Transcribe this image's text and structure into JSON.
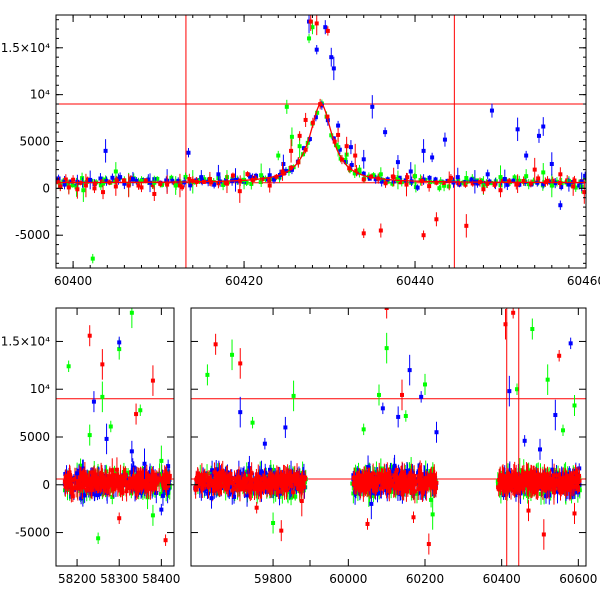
{
  "chart_data": [
    {
      "type": "scatter",
      "panel": "top",
      "xlim": [
        60398,
        60460
      ],
      "ylim": [
        -8500,
        18500
      ],
      "grid": false,
      "legend": "none",
      "x_ticks": [
        {
          "value": 60400,
          "label": "60400"
        },
        {
          "value": 60420,
          "label": "60420"
        },
        {
          "value": 60440,
          "label": "60440"
        },
        {
          "value": 60460,
          "label": "60460"
        }
      ],
      "y_ticks": [
        {
          "value": 15000,
          "label": "1.5×10⁴"
        },
        {
          "value": 10000,
          "label": "10⁴"
        },
        {
          "value": 5000,
          "label": "5000"
        },
        {
          "value": 0,
          "label": "0"
        },
        {
          "value": -5000,
          "label": "-5000"
        }
      ],
      "reference_lines": {
        "horizontal": [
          9000,
          600
        ],
        "vertical": [
          60413.2,
          60444.6
        ]
      },
      "model_curve": {
        "color": "#ff0000",
        "peak_x": 60429,
        "peak_y": 9000,
        "baseline": 600,
        "width": 1.6
      },
      "series": [
        {
          "color": "#00ff00",
          "points": [
            [
              60398.5,
              300
            ],
            [
              60399.5,
              200
            ],
            [
              60400.4,
              100
            ],
            [
              60401.2,
              -200
            ],
            [
              60402.3,
              -7500
            ],
            [
              60403.5,
              500
            ],
            [
              60405,
              1800
            ],
            [
              60406.5,
              400
            ],
            [
              60408,
              800
            ],
            [
              60409.5,
              600
            ],
            [
              60412,
              300
            ],
            [
              60414,
              700
            ],
            [
              60416,
              1000
            ],
            [
              60418,
              1200
            ],
            [
              60420,
              900
            ],
            [
              60422,
              1400
            ],
            [
              60424,
              3500
            ],
            [
              60425,
              8700
            ],
            [
              60425.6,
              5500
            ],
            [
              60426.5,
              4500
            ],
            [
              60427.6,
              16000
            ],
            [
              60428,
              17200
            ],
            [
              60431,
              4400
            ],
            [
              60432,
              3600
            ],
            [
              60433.5,
              2000
            ],
            [
              60436,
              1500
            ],
            [
              60438,
              900
            ],
            [
              60440,
              1300
            ],
            [
              60443,
              700
            ],
            [
              60446,
              1100
            ],
            [
              60448,
              300
            ],
            [
              60450,
              1200
            ],
            [
              60452,
              800
            ],
            [
              60453,
              1300
            ],
            [
              60455,
              1700
            ],
            [
              60456,
              300
            ],
            [
              60458,
              800
            ],
            [
              60459.5,
              200
            ]
          ]
        },
        {
          "color": "#0000ff",
          "points": [
            [
              60399,
              400
            ],
            [
              60400.5,
              700
            ],
            [
              60402,
              900
            ],
            [
              60403.8,
              4000
            ],
            [
              60405.5,
              1200
            ],
            [
              60407,
              1000
            ],
            [
              60409,
              600
            ],
            [
              60411,
              800
            ],
            [
              60413.5,
              3800
            ],
            [
              60415,
              1200
            ],
            [
              60417,
              1500
            ],
            [
              60419,
              900
            ],
            [
              60421,
              1100
            ],
            [
              60423,
              1400
            ],
            [
              60424.6,
              2600
            ],
            [
              60427.6,
              17800
            ],
            [
              60428.5,
              14800
            ],
            [
              60429.5,
              17200
            ],
            [
              60430.2,
              14000
            ],
            [
              60430.5,
              12800
            ],
            [
              60431,
              6700
            ],
            [
              60432.5,
              4400
            ],
            [
              60434,
              3100
            ],
            [
              60435,
              8700
            ],
            [
              60436.5,
              6000
            ],
            [
              60438,
              2800
            ],
            [
              60439.5,
              1800
            ],
            [
              60441,
              4000
            ],
            [
              60442,
              3300
            ],
            [
              60443.5,
              5200
            ],
            [
              60445,
              1200
            ],
            [
              60447,
              700
            ],
            [
              60448.5,
              1500
            ],
            [
              60449,
              8300
            ],
            [
              60450.5,
              1000
            ],
            [
              60452,
              6300
            ],
            [
              60453,
              3500
            ],
            [
              60454.5,
              5600
            ],
            [
              60455,
              6600
            ],
            [
              60456,
              2600
            ],
            [
              60457,
              -1800
            ],
            [
              60458,
              400
            ],
            [
              60459.5,
              700
            ]
          ]
        },
        {
          "color": "#ff0000",
          "points": [
            [
              60398.5,
              200
            ],
            [
              60399.5,
              100
            ],
            [
              60400.5,
              -100
            ],
            [
              60401.5,
              300
            ],
            [
              60402.5,
              0
            ],
            [
              60403.5,
              -400
            ],
            [
              60405,
              200
            ],
            [
              60406.5,
              300
            ],
            [
              60408,
              100
            ],
            [
              60409.5,
              -600
            ],
            [
              60411,
              400
            ],
            [
              60412.5,
              300
            ],
            [
              60414,
              800
            ],
            [
              60416,
              1000
            ],
            [
              60418,
              500
            ],
            [
              60419.5,
              -300
            ],
            [
              60421,
              900
            ],
            [
              60423,
              300
            ],
            [
              60424.5,
              1800
            ],
            [
              60425.5,
              4000
            ],
            [
              60426.5,
              5600
            ],
            [
              60427.2,
              7300
            ],
            [
              60427.8,
              17800
            ],
            [
              60428.5,
              17600
            ],
            [
              60429.8,
              16800
            ],
            [
              60431,
              5700
            ],
            [
              60432,
              4500
            ],
            [
              60433,
              3500
            ],
            [
              60434,
              -4800
            ],
            [
              60436,
              -4500
            ],
            [
              60437.5,
              1200
            ],
            [
              60439,
              400
            ],
            [
              60441,
              -5000
            ],
            [
              60442.5,
              -3300
            ],
            [
              60444,
              800
            ],
            [
              60446,
              -4000
            ],
            [
              60448,
              -100
            ],
            [
              60450,
              -200
            ],
            [
              60452,
              500
            ],
            [
              60454,
              2000
            ],
            [
              60455.5,
              800
            ],
            [
              60457,
              1500
            ],
            [
              60458.5,
              200
            ],
            [
              60459.8,
              -400
            ]
          ]
        }
      ]
    },
    {
      "type": "scatter",
      "panel": "bottom",
      "ylim": [
        -8500,
        18500
      ],
      "grid": false,
      "legend": "none",
      "segments": [
        {
          "xlim": [
            58150,
            58430
          ],
          "x_ticks": [
            {
              "value": 58200,
              "label": "58200"
            },
            {
              "value": 58300,
              "label": "58300"
            },
            {
              "value": 58400,
              "label": "58400"
            }
          ]
        },
        {
          "xlim": [
            59600,
            59890
          ],
          "x_ticks": [
            {
              "value": 59800,
              "label": "59800"
            }
          ]
        },
        {
          "xlim": [
            59900,
            60620
          ],
          "x_ticks": [
            {
              "value": 60000,
              "label": "60000"
            },
            {
              "value": 60200,
              "label": "60200"
            },
            {
              "value": 60400,
              "label": "60400"
            },
            {
              "value": 60600,
              "label": "60600"
            }
          ]
        }
      ],
      "y_ticks": [
        {
          "value": 15000,
          "label": "1.5×10⁴"
        },
        {
          "value": 10000,
          "label": "10⁴"
        },
        {
          "value": 5000,
          "label": "5000"
        },
        {
          "value": 0,
          "label": "0"
        },
        {
          "value": -5000,
          "label": "-5000"
        }
      ],
      "reference_lines": {
        "horizontal": [
          9000,
          600
        ],
        "vertical": [
          60413.2,
          60444.6
        ]
      },
      "observing_seasons": [
        [
          58170,
          58420
        ],
        [
          59610,
          59880
        ],
        [
          60010,
          60230
        ],
        [
          60390,
          60605
        ]
      ],
      "series": [
        {
          "color": "#00ff00",
          "points": [
            [
              58180,
              12400
            ],
            [
              58230,
              5200
            ],
            [
              58260,
              9200
            ],
            [
              58280,
              6100
            ],
            [
              58300,
              14200
            ],
            [
              58330,
              18000
            ],
            [
              58350,
              7800
            ],
            [
              58380,
              -3200
            ],
            [
              58400,
              2500
            ],
            [
              58250,
              -5600
            ],
            [
              59640,
              11500
            ],
            [
              59700,
              13600
            ],
            [
              59750,
              6500
            ],
            [
              59800,
              -4000
            ],
            [
              59850,
              9300
            ],
            [
              60040,
              5800
            ],
            [
              60080,
              9400
            ],
            [
              60100,
              14300
            ],
            [
              60150,
              7200
            ],
            [
              60200,
              10500
            ],
            [
              60220,
              -3100
            ],
            [
              60440,
              10000
            ],
            [
              60480,
              16300
            ],
            [
              60520,
              11000
            ],
            [
              60560,
              5700
            ],
            [
              60590,
              8300
            ]
          ]
        },
        {
          "color": "#0000ff",
          "points": [
            [
              58200,
              1200
            ],
            [
              58240,
              8700
            ],
            [
              58270,
              4800
            ],
            [
              58300,
              14900
            ],
            [
              58330,
              3500
            ],
            [
              58360,
              2200
            ],
            [
              58400,
              -2600
            ],
            [
              59650,
              -1400
            ],
            [
              59720,
              7600
            ],
            [
              59780,
              4300
            ],
            [
              59830,
              6000
            ],
            [
              60060,
              -2000
            ],
            [
              60090,
              8000
            ],
            [
              60130,
              7100
            ],
            [
              60160,
              12000
            ],
            [
              60190,
              9200
            ],
            [
              60230,
              5500
            ],
            [
              60420,
              9800
            ],
            [
              60460,
              4600
            ],
            [
              60500,
              3700
            ],
            [
              60540,
              7300
            ],
            [
              60580,
              14800
            ]
          ]
        },
        {
          "color": "#ff0000",
          "points": [
            [
              58190,
              -1200
            ],
            [
              58230,
              15600
            ],
            [
              58260,
              12600
            ],
            [
              58300,
              -3500
            ],
            [
              58340,
              7400
            ],
            [
              58380,
              10900
            ],
            [
              58410,
              -5800
            ],
            [
              59660,
              14700
            ],
            [
              59720,
              12700
            ],
            [
              59760,
              -2400
            ],
            [
              59820,
              -4800
            ],
            [
              59870,
              -1700
            ],
            [
              60050,
              -4100
            ],
            [
              60100,
              18500
            ],
            [
              60140,
              9400
            ],
            [
              60170,
              -3400
            ],
            [
              60210,
              -6200
            ],
            [
              60410,
              16800
            ],
            [
              60430,
              18000
            ],
            [
              60470,
              -2700
            ],
            [
              60510,
              -5200
            ],
            [
              60550,
              13500
            ],
            [
              60590,
              -3000
            ]
          ]
        }
      ]
    }
  ]
}
